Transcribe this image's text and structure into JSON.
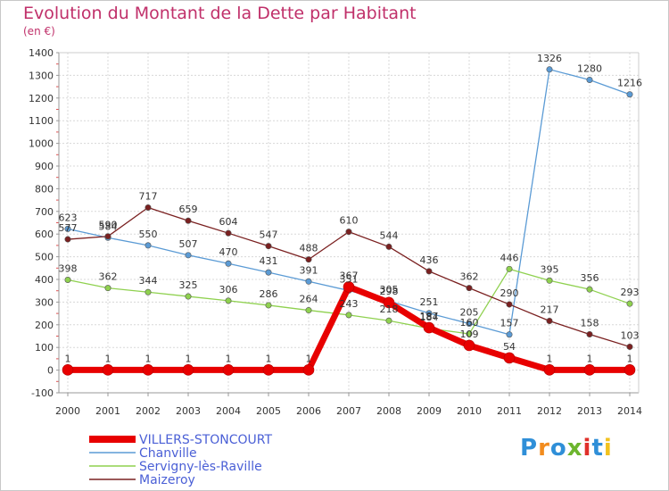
{
  "header": {
    "title": "Evolution du Montant de la Dette par Habitant",
    "unit": "(en €)"
  },
  "logo": {
    "text": "Proxiti",
    "colors": [
      "#2f8fd8",
      "#f28c1e",
      "#2f8fd8",
      "#6cb52d",
      "#e0302a",
      "#2f8fd8",
      "#f2c21e"
    ]
  },
  "chart_data": {
    "type": "line",
    "title": "Evolution du Montant de la Dette par Habitant",
    "ylabel": "(en €)",
    "xlabel": "",
    "x": [
      2000,
      2001,
      2002,
      2003,
      2004,
      2005,
      2006,
      2007,
      2008,
      2009,
      2010,
      2011,
      2012,
      2013,
      2014
    ],
    "ylim": [
      -100,
      1400
    ],
    "yticks": [
      -100,
      0,
      100,
      200,
      300,
      400,
      500,
      600,
      700,
      800,
      900,
      1000,
      1100,
      1200,
      1300,
      1400
    ],
    "grid": true,
    "legend_position": "bottom-left",
    "series": [
      {
        "name": "VILLERS-STONCOURT",
        "color": "#e80000",
        "width": 7,
        "values": [
          1,
          1,
          1,
          1,
          1,
          1,
          1,
          367,
          298,
          187,
          109,
          54,
          1,
          1,
          1
        ],
        "labels": [
          "1",
          "1",
          "1",
          "1",
          "1",
          "1",
          "1",
          "367",
          "298",
          "187",
          "109",
          "54",
          "1",
          "1",
          "1"
        ]
      },
      {
        "name": "Chanville",
        "color": "#5b9bd5",
        "width": 1.3,
        "values": [
          623,
          584,
          550,
          507,
          470,
          431,
          391,
          351,
          305,
          251,
          205,
          157,
          1326,
          1280,
          1216
        ],
        "labels": [
          "623",
          "584",
          "550",
          "507",
          "470",
          "431",
          "391",
          "351",
          "305",
          "251",
          "205",
          "157",
          "1326",
          "1280",
          "1216"
        ]
      },
      {
        "name": "Servigny-lès-Raville",
        "color": "#8fd14f",
        "width": 1.3,
        "values": [
          398,
          362,
          344,
          325,
          306,
          286,
          264,
          243,
          218,
          184,
          160,
          446,
          395,
          356,
          293
        ],
        "labels": [
          "398",
          "362",
          "344",
          "325",
          "306",
          "286",
          "264",
          "243",
          "218",
          "184",
          "160",
          "446",
          "395",
          "356",
          "293"
        ]
      },
      {
        "name": "Maizeroy",
        "color": "#7a2020",
        "width": 1.3,
        "values": [
          577,
          590,
          717,
          659,
          604,
          547,
          488,
          610,
          544,
          436,
          362,
          290,
          217,
          158,
          103
        ],
        "labels": [
          "577",
          "590",
          "717",
          "659",
          "604",
          "547",
          "488",
          "610",
          "544",
          "436",
          "362",
          "290",
          "217",
          "158",
          "103"
        ]
      }
    ]
  }
}
